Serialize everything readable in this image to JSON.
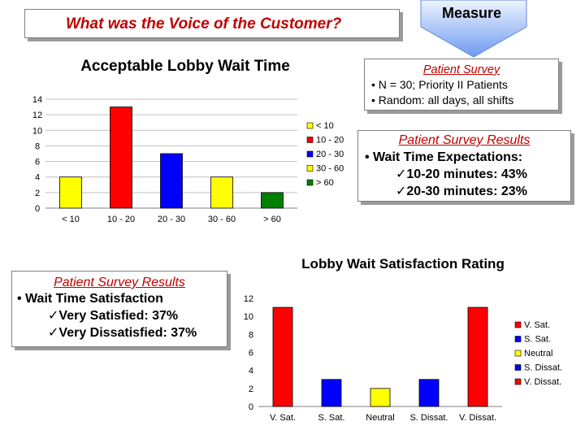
{
  "header": {
    "title": "What was the Voice of the Customer?",
    "measure_label": "Measure"
  },
  "survey_info": {
    "title": "Patient Survey",
    "lines": [
      "• N = 30; Priority II Patients",
      "• Random: all days, all shifts"
    ]
  },
  "results_wait": {
    "title": "Patient Survey Results",
    "line1": "• Wait Time Expectations:",
    "line2": "✓10-20 minutes: 43%",
    "line3": "✓20-30 minutes: 23%"
  },
  "results_satisfaction": {
    "title": "Patient Survey Results",
    "line1": "• Wait Time Satisfaction",
    "line2": "✓Very Satisfied: 37%",
    "line3": "✓Very Dissatisfied: 37%"
  },
  "colors": {
    "yellow": "#ffff00",
    "red": "#ff0000",
    "blue": "#0000ff",
    "green": "#008000",
    "title_red": "#c00000"
  },
  "chart_data": [
    {
      "type": "bar",
      "title": "Acceptable Lobby Wait Time",
      "categories": [
        "< 10",
        "10 - 20",
        "20 - 30",
        "30 - 60",
        "> 60"
      ],
      "values": [
        4,
        13,
        7,
        4,
        2
      ],
      "bar_colors": [
        "#ffff00",
        "#ff0000",
        "#0000ff",
        "#ffff00",
        "#008000"
      ],
      "ylim": [
        0,
        14
      ],
      "yticks": [
        0,
        2,
        4,
        6,
        8,
        10,
        12,
        14
      ],
      "grid": true,
      "legend": {
        "placement": "right",
        "entries": [
          "< 10",
          "10 - 20",
          "20 - 30",
          "30 - 60",
          "> 60"
        ]
      }
    },
    {
      "type": "bar",
      "title": "Lobby Wait Satisfaction Rating",
      "categories": [
        "V. Sat.",
        "S. Sat.",
        "Neutral",
        "S. Dissat.",
        "V. Dissat."
      ],
      "values": [
        11,
        3,
        2,
        3,
        11
      ],
      "bar_colors": [
        "#ff0000",
        "#0000ff",
        "#ffff00",
        "#0000ff",
        "#ff0000"
      ],
      "ylim": [
        0,
        12
      ],
      "yticks": [
        0,
        2,
        4,
        6,
        8,
        10,
        12
      ],
      "grid": false,
      "legend": {
        "placement": "right",
        "entries": [
          "V. Sat.",
          "S. Sat.",
          "Neutral",
          "S. Dissat.",
          "V. Dissat."
        ]
      }
    }
  ]
}
